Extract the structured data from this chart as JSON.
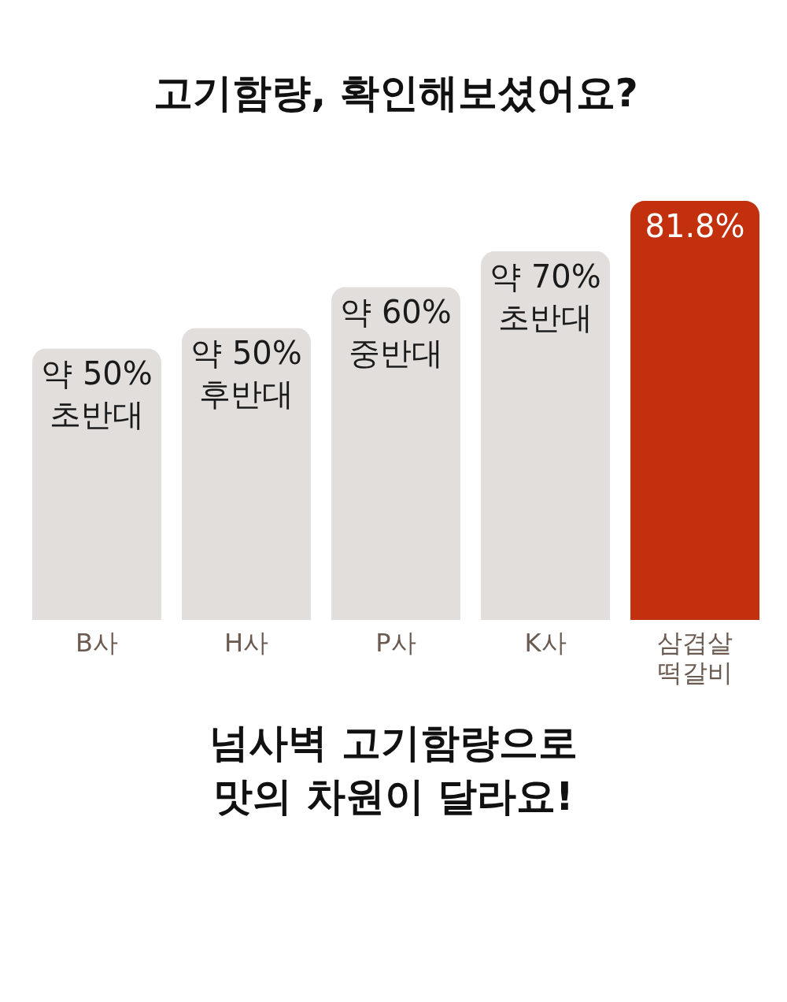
{
  "chart_data": {
    "type": "bar",
    "title": "고기함량, 확인해보셨어요?",
    "categories": [
      "B사",
      "H사",
      "P사",
      "K사",
      "삼겹살\n떡갈비"
    ],
    "values": [
      53,
      57,
      65,
      72,
      81.8
    ],
    "colors": [
      "#e1dedc",
      "#e1dedc",
      "#e1dedc",
      "#e1dedc",
      "#c2300e"
    ],
    "value_labels": [
      "약 50%\n초반대",
      "약 50%\n후반대",
      "약 60%\n중반대",
      "약 70%\n초반대",
      "81.8%"
    ],
    "annotations": [
      "넘사벽 고기함량으로\n맛의 차원이 달라요!"
    ]
  }
}
